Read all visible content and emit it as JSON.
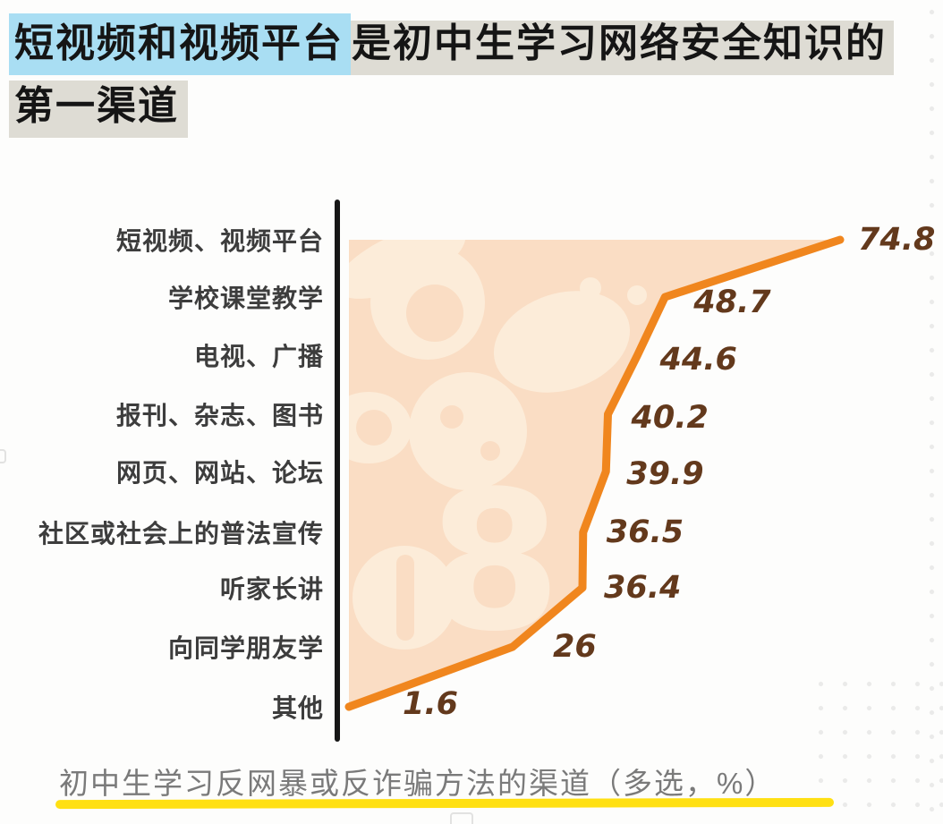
{
  "title": {
    "highlighted_part": "短视频和视频平台",
    "rest_line1": "是初中生学习网络安全知识的",
    "line2": "第一渠道"
  },
  "caption": "初中生学习反网暴或反诈骗方法的渠道（多选，%）",
  "watermark_glyph": "8",
  "colors": {
    "line": "#f0861e",
    "area_fill": "#faddc4",
    "area_decor": "#fcecd9",
    "value_label": "#63391c",
    "category_label": "#3d3d3d",
    "axis": "#161616",
    "title_highlight_blue": "#a9def3",
    "title_highlight_gray": "#dedcd4",
    "caption_text": "#7a7a7a",
    "caption_underline": "#ffe013"
  },
  "chart_data": {
    "type": "line",
    "orientation": "horizontal-categories",
    "title": "初中生学习反网暴或反诈骗方法的渠道（多选，%）",
    "categories": [
      "短视频、视频平台",
      "学校课堂教学",
      "电视、广播",
      "报刊、杂志、图书",
      "网页、网站、论坛",
      "社区或社会上的普法宣传",
      "听家长讲",
      "向同学朋友学",
      "其他"
    ],
    "values": [
      74.8,
      48.7,
      44.6,
      40.2,
      39.9,
      36.5,
      36.4,
      26,
      1.6
    ],
    "value_labels": [
      "74.8",
      "48.7",
      "44.6",
      "40.2",
      "39.9",
      "36.5",
      "36.4",
      "26",
      "1.6"
    ],
    "xlim": [
      0,
      80
    ],
    "unit": "%",
    "grid": false,
    "legend": false,
    "area_filled": true
  }
}
